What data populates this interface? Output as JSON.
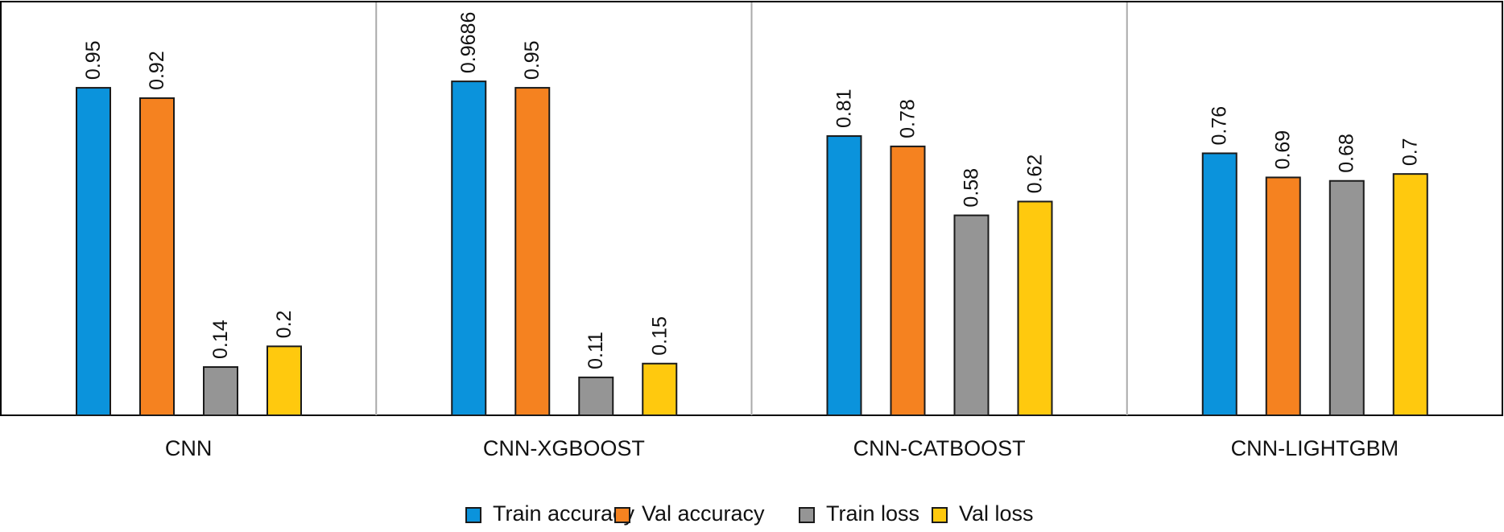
{
  "chart_data": {
    "type": "bar",
    "categories": [
      "CNN",
      "CNN-XGBOOST",
      "CNN-CATBOOST",
      "CNN-LIGHTGBM"
    ],
    "series": [
      {
        "name": "Train accuracy",
        "color": "#0b93dc",
        "values": [
          0.95,
          0.9686,
          0.81,
          0.76
        ],
        "labels": [
          "0.95",
          "0.9686",
          "0.81",
          "0.76"
        ]
      },
      {
        "name": "Val accuracy",
        "color": "#f58220",
        "values": [
          0.92,
          0.95,
          0.78,
          0.69
        ],
        "labels": [
          "0.92",
          "0.95",
          "0.78",
          "0.69"
        ]
      },
      {
        "name": "Train loss",
        "color": "#959595",
        "values": [
          0.14,
          0.11,
          0.58,
          0.68
        ],
        "labels": [
          "0.14",
          "0.11",
          "0.58",
          "0.68"
        ]
      },
      {
        "name": "Val loss",
        "color": "#ffc90e",
        "values": [
          0.2,
          0.15,
          0.62,
          0.7
        ],
        "labels": [
          "0.2",
          "0.15",
          "0.62",
          "0.7"
        ]
      }
    ],
    "title": "",
    "xlabel": "",
    "ylabel": "",
    "ylim": [
      0,
      1.2
    ],
    "grid": false,
    "legend_position": "bottom-center"
  }
}
